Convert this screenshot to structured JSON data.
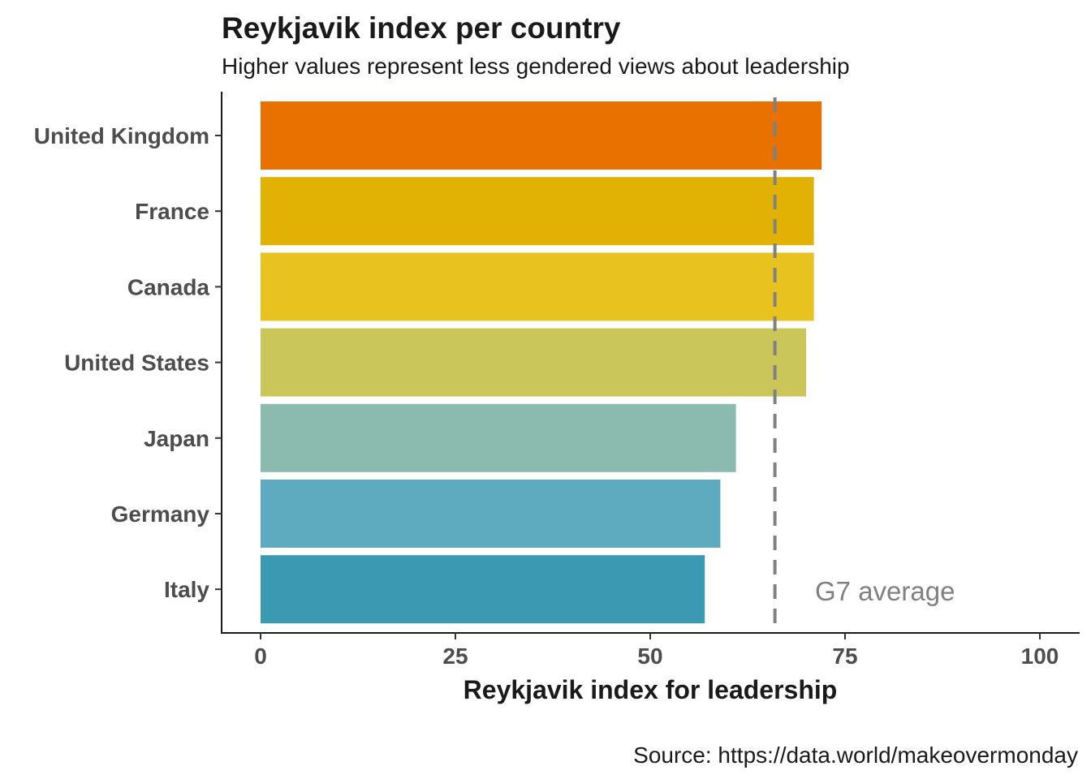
{
  "chart_data": {
    "type": "bar",
    "orientation": "horizontal",
    "title": "Reykjavik index per country",
    "subtitle": "Higher values represent less gendered views about leadership",
    "xlabel": "Reykjavik index for leadership",
    "ylabel": "",
    "xlim": [
      0,
      100
    ],
    "xticks": [
      0,
      25,
      50,
      75,
      100
    ],
    "categories": [
      "United Kingdom",
      "France",
      "Canada",
      "United States",
      "Japan",
      "Germany",
      "Italy"
    ],
    "values": [
      72,
      71,
      71,
      70,
      61,
      59,
      57
    ],
    "colors": [
      "#E87100",
      "#E1B104",
      "#E8C21F",
      "#CBC65A",
      "#8BBBAE",
      "#5EAABF",
      "#3B99B1"
    ],
    "reference_line": {
      "value": 66,
      "label": "G7 average",
      "color": "#808080",
      "style": "dashed"
    },
    "grid": false,
    "legend": "none",
    "caption": "Source: https://data.world/makeovermonday"
  }
}
